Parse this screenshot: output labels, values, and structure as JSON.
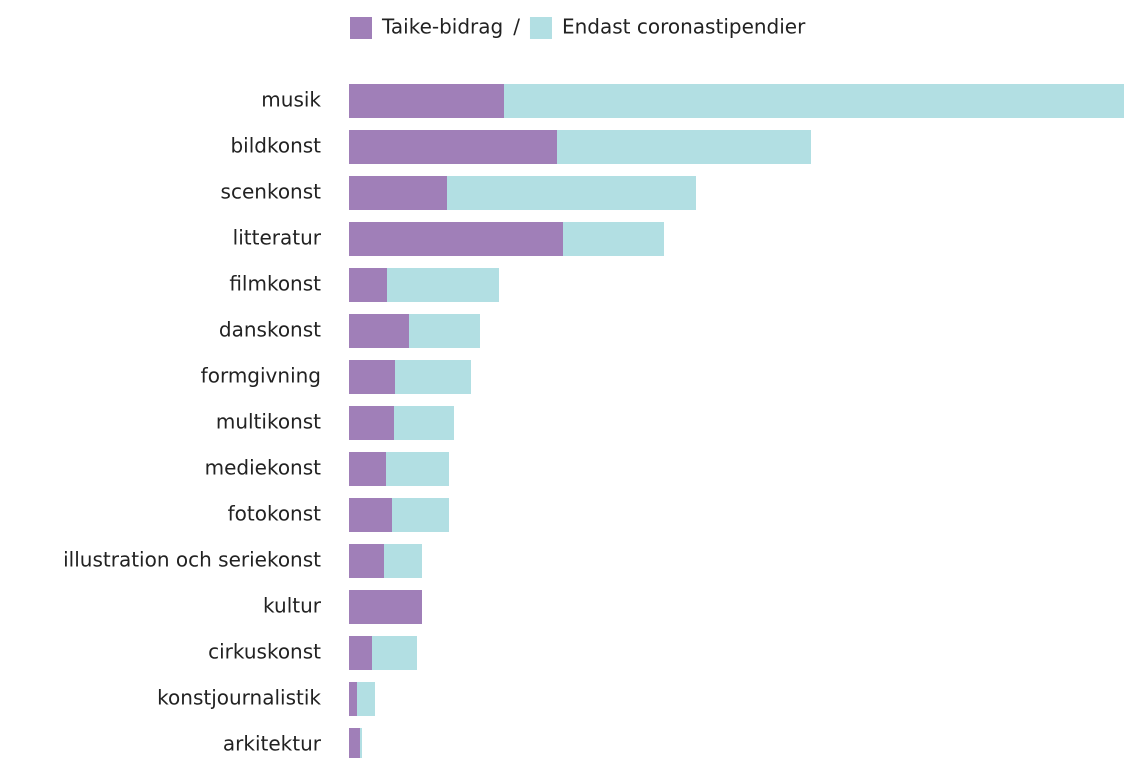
{
  "chart_data": {
    "type": "stacked-barh",
    "categories": [
      "musik",
      "bildkonst",
      "scenkonst",
      "litteratur",
      "filmkonst",
      "danskonst",
      "formgivning",
      "multikonst",
      "mediekonst",
      "fotokonst",
      "illustration och seriekonst",
      "kultur",
      "cirkuskonst",
      "konstjournalistik",
      "arkitektur"
    ],
    "series": [
      {
        "name": "Taike-bidrag",
        "color": "#a07fb8",
        "values": [
          155,
          208,
          98,
          214,
          38,
          60,
          46,
          45,
          37,
          43,
          35,
          73,
          23,
          8,
          11
        ]
      },
      {
        "name": "Endast coronastipendier",
        "color": "#b2dfe3",
        "values": [
          620,
          254,
          249,
          101,
          112,
          71,
          76,
          60,
          63,
          57,
          38,
          0,
          45,
          18,
          2
        ]
      }
    ],
    "legend_separator": "/",
    "xlim": [
      0,
      775
    ]
  }
}
